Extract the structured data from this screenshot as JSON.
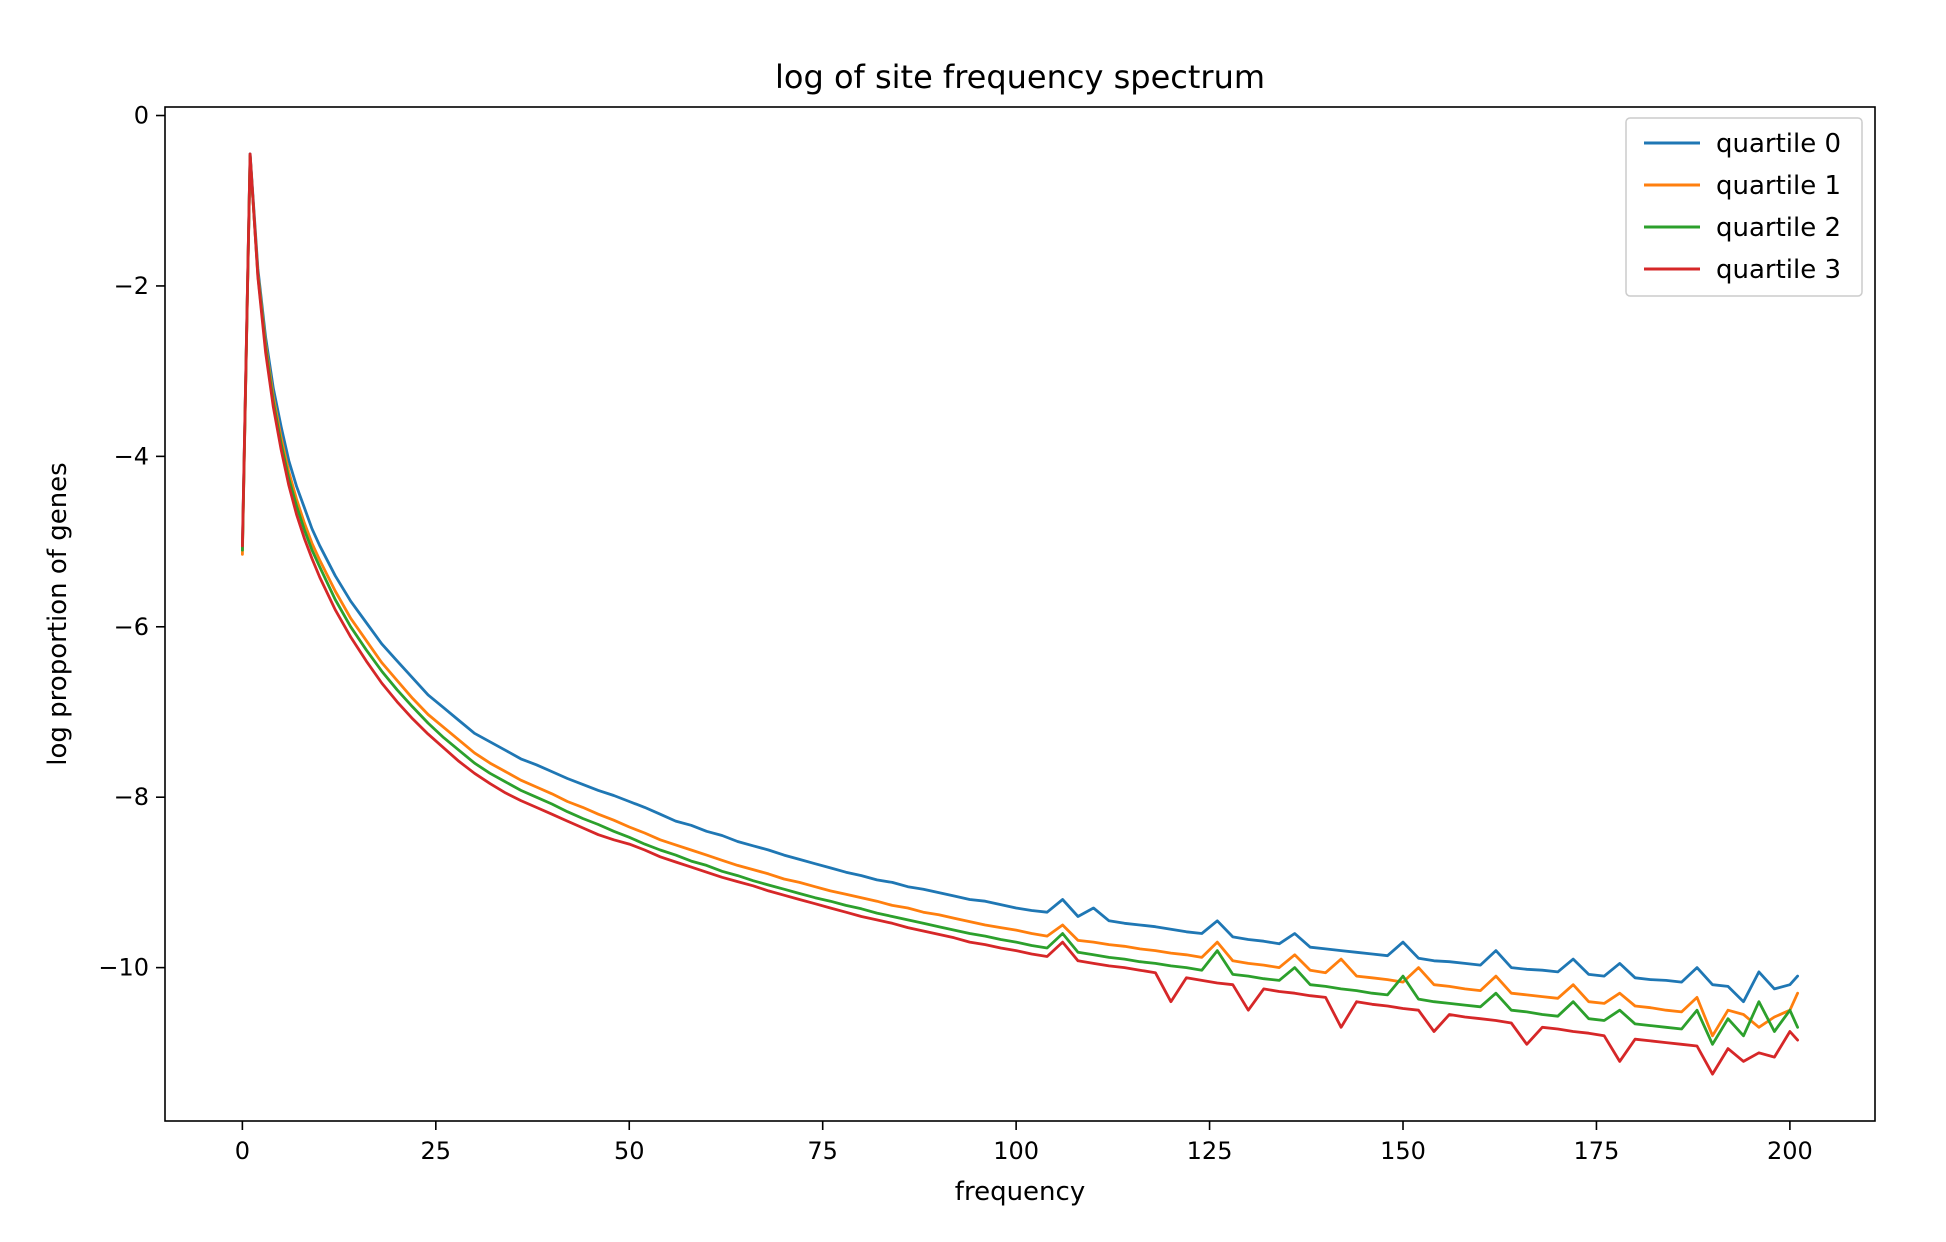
{
  "chart_data": {
    "type": "line",
    "title": "log of site frequency spectrum",
    "xlabel": "frequency",
    "ylabel": "log proportion of genes",
    "xlim": [
      -10,
      211
    ],
    "ylim": [
      -11.8,
      0.1
    ],
    "xticks": [
      0,
      25,
      50,
      75,
      100,
      125,
      150,
      175,
      200
    ],
    "yticks": [
      0,
      -2,
      -4,
      -6,
      -8,
      -10
    ],
    "legend_position": "top-right",
    "grid": false,
    "series": [
      {
        "name": "quartile 0",
        "color": "#1f77b4",
        "x": [
          0,
          1,
          2,
          3,
          4,
          5,
          6,
          7,
          8,
          9,
          10,
          12,
          14,
          16,
          18,
          20,
          22,
          24,
          26,
          28,
          30,
          32,
          34,
          36,
          38,
          40,
          42,
          44,
          46,
          48,
          50,
          52,
          54,
          56,
          58,
          60,
          62,
          64,
          66,
          68,
          70,
          72,
          74,
          76,
          78,
          80,
          82,
          84,
          86,
          88,
          90,
          92,
          94,
          96,
          98,
          100,
          102,
          104,
          106,
          108,
          110,
          112,
          114,
          116,
          118,
          120,
          122,
          124,
          126,
          128,
          130,
          132,
          134,
          136,
          138,
          140,
          142,
          144,
          146,
          148,
          150,
          152,
          154,
          156,
          158,
          160,
          162,
          164,
          166,
          168,
          170,
          172,
          174,
          176,
          178,
          180,
          182,
          184,
          186,
          188,
          190,
          192,
          194,
          196,
          198,
          200,
          201
        ],
        "y": [
          -5.1,
          -0.45,
          -1.8,
          -2.6,
          -3.2,
          -3.65,
          -4.05,
          -4.35,
          -4.6,
          -4.85,
          -5.05,
          -5.4,
          -5.7,
          -5.95,
          -6.2,
          -6.4,
          -6.6,
          -6.8,
          -6.95,
          -7.1,
          -7.25,
          -7.35,
          -7.45,
          -7.55,
          -7.62,
          -7.7,
          -7.78,
          -7.85,
          -7.92,
          -7.98,
          -8.05,
          -8.12,
          -8.2,
          -8.28,
          -8.33,
          -8.4,
          -8.45,
          -8.52,
          -8.57,
          -8.62,
          -8.68,
          -8.73,
          -8.78,
          -8.83,
          -8.88,
          -8.92,
          -8.97,
          -9.0,
          -9.05,
          -9.08,
          -9.12,
          -9.16,
          -9.2,
          -9.22,
          -9.26,
          -9.3,
          -9.33,
          -9.35,
          -9.2,
          -9.4,
          -9.3,
          -9.45,
          -9.48,
          -9.5,
          -9.52,
          -9.55,
          -9.58,
          -9.6,
          -9.45,
          -9.64,
          -9.67,
          -9.69,
          -9.72,
          -9.6,
          -9.76,
          -9.78,
          -9.8,
          -9.82,
          -9.84,
          -9.86,
          -9.7,
          -9.89,
          -9.92,
          -9.93,
          -9.95,
          -9.97,
          -9.8,
          -10.0,
          -10.02,
          -10.03,
          -10.05,
          -9.9,
          -10.08,
          -10.1,
          -9.95,
          -10.12,
          -10.14,
          -10.15,
          -10.17,
          -10.0,
          -10.2,
          -10.22,
          -10.4,
          -10.05,
          -10.25,
          -10.2,
          -10.1
        ]
      },
      {
        "name": "quartile 1",
        "color": "#ff7f0e",
        "x": [
          0,
          1,
          2,
          3,
          4,
          5,
          6,
          7,
          8,
          9,
          10,
          12,
          14,
          16,
          18,
          20,
          22,
          24,
          26,
          28,
          30,
          32,
          34,
          36,
          38,
          40,
          42,
          44,
          46,
          48,
          50,
          52,
          54,
          56,
          58,
          60,
          62,
          64,
          66,
          68,
          70,
          72,
          74,
          76,
          78,
          80,
          82,
          84,
          86,
          88,
          90,
          92,
          94,
          96,
          98,
          100,
          102,
          104,
          106,
          108,
          110,
          112,
          114,
          116,
          118,
          120,
          122,
          124,
          126,
          128,
          130,
          132,
          134,
          136,
          138,
          140,
          142,
          144,
          146,
          148,
          150,
          152,
          154,
          156,
          158,
          160,
          162,
          164,
          166,
          168,
          170,
          172,
          174,
          176,
          178,
          180,
          182,
          184,
          186,
          188,
          190,
          192,
          194,
          196,
          198,
          200,
          201
        ],
        "y": [
          -5.15,
          -0.48,
          -1.85,
          -2.68,
          -3.3,
          -3.78,
          -4.18,
          -4.5,
          -4.78,
          -5.02,
          -5.22,
          -5.58,
          -5.9,
          -6.16,
          -6.42,
          -6.63,
          -6.84,
          -7.03,
          -7.18,
          -7.33,
          -7.48,
          -7.6,
          -7.7,
          -7.8,
          -7.88,
          -7.96,
          -8.05,
          -8.12,
          -8.2,
          -8.27,
          -8.35,
          -8.42,
          -8.5,
          -8.56,
          -8.62,
          -8.68,
          -8.74,
          -8.8,
          -8.85,
          -8.9,
          -8.96,
          -9.0,
          -9.05,
          -9.1,
          -9.14,
          -9.18,
          -9.22,
          -9.27,
          -9.3,
          -9.35,
          -9.38,
          -9.42,
          -9.46,
          -9.5,
          -9.53,
          -9.56,
          -9.6,
          -9.63,
          -9.5,
          -9.68,
          -9.7,
          -9.73,
          -9.75,
          -9.78,
          -9.8,
          -9.83,
          -9.85,
          -9.88,
          -9.7,
          -9.92,
          -9.95,
          -9.97,
          -10.0,
          -9.85,
          -10.03,
          -10.06,
          -9.9,
          -10.1,
          -10.12,
          -10.14,
          -10.17,
          -10.0,
          -10.2,
          -10.22,
          -10.25,
          -10.27,
          -10.1,
          -10.3,
          -10.32,
          -10.34,
          -10.36,
          -10.2,
          -10.4,
          -10.42,
          -10.3,
          -10.45,
          -10.47,
          -10.5,
          -10.52,
          -10.35,
          -10.8,
          -10.5,
          -10.55,
          -10.7,
          -10.58,
          -10.5,
          -10.3
        ]
      },
      {
        "name": "quartile 2",
        "color": "#2ca02c",
        "x": [
          0,
          1,
          2,
          3,
          4,
          5,
          6,
          7,
          8,
          9,
          10,
          12,
          14,
          16,
          18,
          20,
          22,
          24,
          26,
          28,
          30,
          32,
          34,
          36,
          38,
          40,
          42,
          44,
          46,
          48,
          50,
          52,
          54,
          56,
          58,
          60,
          62,
          64,
          66,
          68,
          70,
          72,
          74,
          76,
          78,
          80,
          82,
          84,
          86,
          88,
          90,
          92,
          94,
          96,
          98,
          100,
          102,
          104,
          106,
          108,
          110,
          112,
          114,
          116,
          118,
          120,
          122,
          124,
          126,
          128,
          130,
          132,
          134,
          136,
          138,
          140,
          142,
          144,
          146,
          148,
          150,
          152,
          154,
          156,
          158,
          160,
          162,
          164,
          166,
          168,
          170,
          172,
          174,
          176,
          178,
          180,
          182,
          184,
          186,
          188,
          190,
          192,
          194,
          196,
          198,
          200,
          201
        ],
        "y": [
          -5.1,
          -0.47,
          -1.88,
          -2.72,
          -3.36,
          -3.85,
          -4.26,
          -4.58,
          -4.86,
          -5.1,
          -5.3,
          -5.68,
          -6.0,
          -6.27,
          -6.52,
          -6.74,
          -6.94,
          -7.13,
          -7.3,
          -7.45,
          -7.6,
          -7.72,
          -7.82,
          -7.92,
          -8.0,
          -8.08,
          -8.17,
          -8.25,
          -8.32,
          -8.4,
          -8.47,
          -8.55,
          -8.62,
          -8.68,
          -8.75,
          -8.8,
          -8.87,
          -8.92,
          -8.98,
          -9.03,
          -9.08,
          -9.13,
          -9.18,
          -9.22,
          -9.27,
          -9.31,
          -9.36,
          -9.4,
          -9.44,
          -9.48,
          -9.52,
          -9.56,
          -9.6,
          -9.63,
          -9.67,
          -9.7,
          -9.74,
          -9.77,
          -9.6,
          -9.82,
          -9.85,
          -9.88,
          -9.9,
          -9.93,
          -9.95,
          -9.98,
          -10.0,
          -10.03,
          -9.8,
          -10.08,
          -10.1,
          -10.13,
          -10.15,
          -10.0,
          -10.2,
          -10.22,
          -10.25,
          -10.27,
          -10.3,
          -10.32,
          -10.1,
          -10.37,
          -10.4,
          -10.42,
          -10.44,
          -10.46,
          -10.3,
          -10.5,
          -10.52,
          -10.55,
          -10.57,
          -10.4,
          -10.6,
          -10.62,
          -10.5,
          -10.66,
          -10.68,
          -10.7,
          -10.72,
          -10.5,
          -10.9,
          -10.6,
          -10.8,
          -10.4,
          -10.75,
          -10.5,
          -10.7
        ]
      },
      {
        "name": "quartile 3",
        "color": "#d62728",
        "x": [
          0,
          1,
          2,
          3,
          4,
          5,
          6,
          7,
          8,
          9,
          10,
          12,
          14,
          16,
          18,
          20,
          22,
          24,
          26,
          28,
          30,
          32,
          34,
          36,
          38,
          40,
          42,
          44,
          46,
          48,
          50,
          52,
          54,
          56,
          58,
          60,
          62,
          64,
          66,
          68,
          70,
          72,
          74,
          76,
          78,
          80,
          82,
          84,
          86,
          88,
          90,
          92,
          94,
          96,
          98,
          100,
          102,
          104,
          106,
          108,
          110,
          112,
          114,
          116,
          118,
          120,
          122,
          124,
          126,
          128,
          130,
          132,
          134,
          136,
          138,
          140,
          142,
          144,
          146,
          148,
          150,
          152,
          154,
          156,
          158,
          160,
          162,
          164,
          166,
          168,
          170,
          172,
          174,
          176,
          178,
          180,
          182,
          184,
          186,
          188,
          190,
          192,
          194,
          196,
          198,
          200,
          201
        ],
        "y": [
          -5.05,
          -0.45,
          -1.9,
          -2.78,
          -3.42,
          -3.92,
          -4.34,
          -4.68,
          -4.96,
          -5.2,
          -5.42,
          -5.8,
          -6.12,
          -6.4,
          -6.66,
          -6.88,
          -7.08,
          -7.26,
          -7.42,
          -7.58,
          -7.72,
          -7.84,
          -7.95,
          -8.04,
          -8.12,
          -8.2,
          -8.28,
          -8.36,
          -8.44,
          -8.5,
          -8.55,
          -8.62,
          -8.7,
          -8.76,
          -8.82,
          -8.88,
          -8.94,
          -8.99,
          -9.04,
          -9.1,
          -9.15,
          -9.2,
          -9.25,
          -9.3,
          -9.35,
          -9.4,
          -9.44,
          -9.48,
          -9.53,
          -9.57,
          -9.61,
          -9.65,
          -9.7,
          -9.73,
          -9.77,
          -9.8,
          -9.84,
          -9.87,
          -9.7,
          -9.92,
          -9.95,
          -9.98,
          -10.0,
          -10.03,
          -10.06,
          -10.4,
          -10.12,
          -10.15,
          -10.18,
          -10.2,
          -10.5,
          -10.25,
          -10.28,
          -10.3,
          -10.33,
          -10.35,
          -10.7,
          -10.4,
          -10.43,
          -10.45,
          -10.48,
          -10.5,
          -10.75,
          -10.55,
          -10.58,
          -10.6,
          -10.62,
          -10.65,
          -10.9,
          -10.7,
          -10.72,
          -10.75,
          -10.77,
          -10.8,
          -11.1,
          -10.84,
          -10.86,
          -10.88,
          -10.9,
          -10.92,
          -11.25,
          -10.95,
          -11.1,
          -11.0,
          -11.05,
          -10.75,
          -10.85
        ]
      }
    ]
  }
}
